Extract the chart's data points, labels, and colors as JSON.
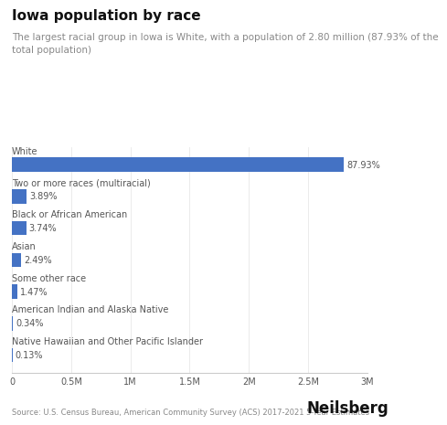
{
  "title": "Iowa population by race",
  "subtitle": "The largest racial group in Iowa is White, with a population of 2.80 million (87.93% of the\ntotal population)",
  "categories": [
    "White",
    "Two or more races (multiracial)",
    "Black or African American",
    "Asian",
    "Some other race",
    "American Indian and Alaska Native",
    "Native Hawaiian and Other Pacific Islander"
  ],
  "values": [
    2800000,
    124000,
    119200,
    79300,
    46800,
    10800,
    4100
  ],
  "percentages": [
    "87.93%",
    "3.89%",
    "3.74%",
    "2.49%",
    "1.47%",
    "0.34%",
    "0.13%"
  ],
  "bar_color": "#4472C4",
  "xlim": [
    0,
    3000000
  ],
  "xticks": [
    0,
    500000,
    1000000,
    1500000,
    2000000,
    2500000,
    3000000
  ],
  "xtick_labels": [
    "0",
    "0.5M",
    "1M",
    "1.5M",
    "2M",
    "2.5M",
    "3M"
  ],
  "source_text": "Source: U.S. Census Bureau, American Community Survey (ACS) 2017-2021 5-Year Estimates",
  "brand": "Neilsberg",
  "background_color": "#ffffff",
  "label_color": "#555555",
  "title_color": "#111111",
  "subtitle_color": "#888888",
  "bar_height": 0.45
}
